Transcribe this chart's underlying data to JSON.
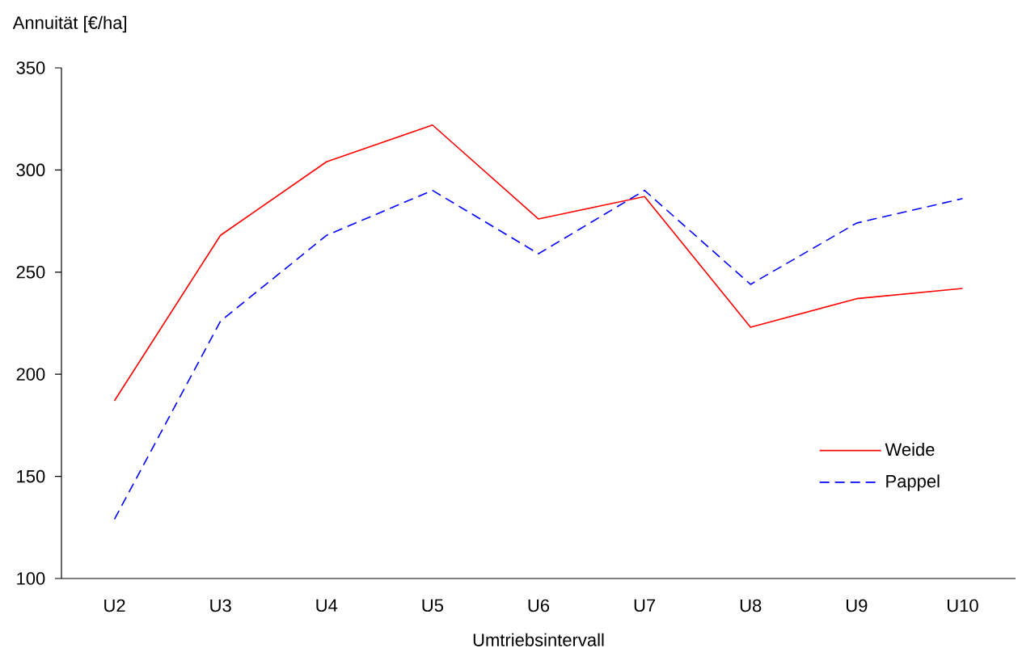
{
  "chart_data": {
    "type": "line",
    "xlabel": "Umtriebsintervall",
    "ylabel": "Annuität [€/ha]",
    "categories": [
      "U2",
      "U3",
      "U4",
      "U5",
      "U6",
      "U7",
      "U8",
      "U9",
      "U10"
    ],
    "series": [
      {
        "name": "Weide",
        "color": "#ff0000",
        "line_style": "solid",
        "values": [
          187,
          268,
          304,
          322,
          276,
          287,
          223,
          237,
          242
        ]
      },
      {
        "name": "Pappel",
        "color": "#0000ff",
        "line_style": "dashed",
        "values": [
          129,
          226,
          268,
          290,
          259,
          290,
          244,
          274,
          286
        ]
      }
    ],
    "ylim": [
      100,
      350
    ],
    "yticks": [
      100,
      150,
      200,
      250,
      300,
      350
    ],
    "grid": false,
    "legend": "bottom right",
    "marker": "none"
  }
}
